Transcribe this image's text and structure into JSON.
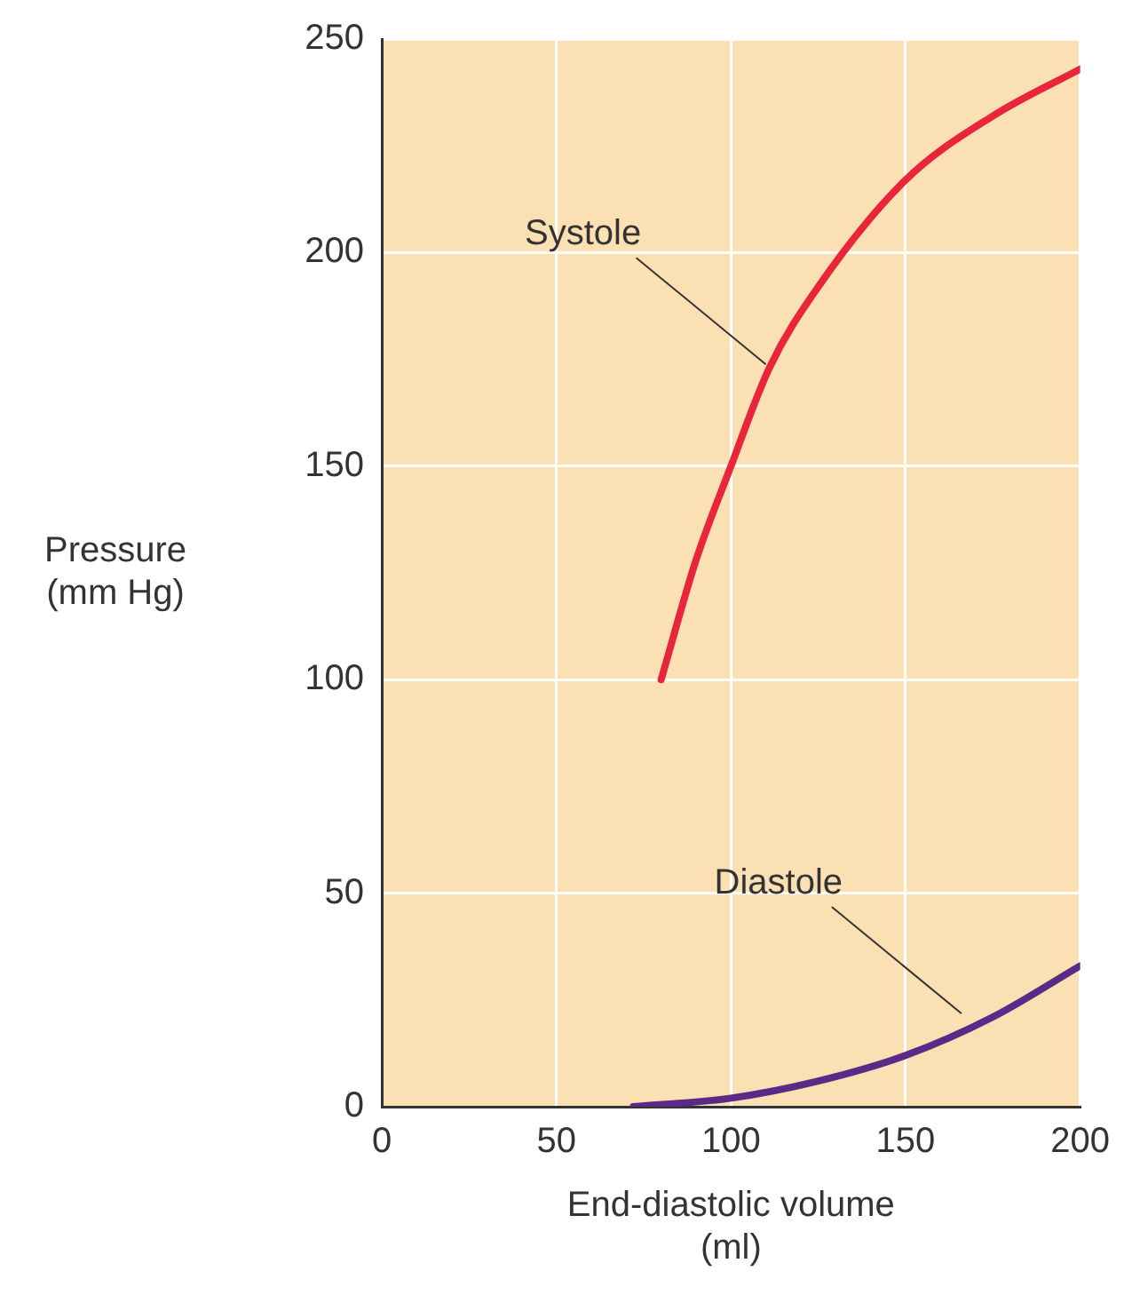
{
  "chart_data": {
    "type": "line",
    "xlabel": "End-diastolic volume\n(ml)",
    "ylabel": "Pressure\n(mm Hg)",
    "xlim": [
      0,
      200
    ],
    "xticks": [
      0,
      50,
      100,
      150,
      200
    ],
    "ylim": [
      0,
      250
    ],
    "yticks": [
      0,
      50,
      100,
      150,
      200,
      250
    ],
    "grid": true,
    "marker": "none",
    "line_style": "solid",
    "series": [
      {
        "color": "#e8253a",
        "x": [
          80,
          90,
          100,
          111,
          125,
          150,
          175,
          200
        ],
        "values": [
          100,
          128,
          150,
          173,
          192,
          217,
          232,
          243
        ]
      },
      {
        "color": "#5b2a86",
        "x": [
          72,
          100,
          125,
          150,
          175,
          200
        ],
        "values": [
          0,
          2,
          6,
          12,
          21,
          33
        ]
      }
    ],
    "annotations": [
      {
        "text": "Systole",
        "x": 111,
        "y": 173
      },
      {
        "text": "Diastole",
        "x": 167,
        "y": 21
      }
    ]
  }
}
